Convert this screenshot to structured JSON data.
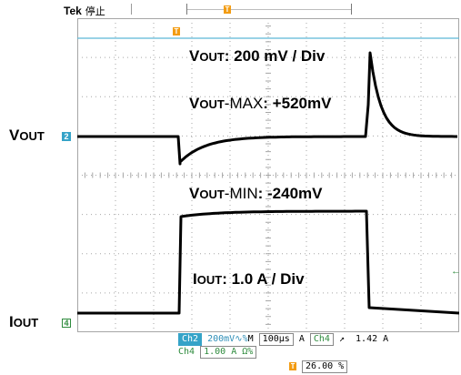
{
  "header": {
    "brand": "Tek",
    "state": "停止",
    "trigger_marker": "T"
  },
  "annotations": {
    "vout_scale": {
      "main": "V",
      "sub": "OUT",
      "rest": ": 200 mV / Div"
    },
    "vout_max": {
      "main": "V",
      "sub": "OUT",
      "mid": "-MAX",
      "rest": ": +520mV"
    },
    "vout_min": {
      "main": "V",
      "sub": "OUT",
      "mid": "-MIN",
      "rest": ": -240mV"
    },
    "iout_scale": {
      "main": "I",
      "sub": "OUT",
      "rest": ": 1.0 A / Div"
    }
  },
  "left_labels": {
    "vout": {
      "main": "V",
      "sub": "OUT"
    },
    "iout": {
      "main": "I",
      "sub": "OUT"
    }
  },
  "channel_markers": {
    "ch2": "2",
    "ch4": "4"
  },
  "status_bar": {
    "ch2_label": "Ch2",
    "ch2_scale": "200mV",
    "ch2_coupling": "∿%",
    "ch4_label": "Ch4",
    "ch4_scale": "1.00 A",
    "ch4_coupling": "Ω%",
    "timebase_prefix": "M",
    "timebase": "100µs",
    "acq_mode": "A",
    "trigger_source": "Ch4",
    "trigger_slope": "↗",
    "trigger_level": "1.42 A",
    "trigger_position": "26.00 %"
  },
  "colors": {
    "grid": "#a6a6a6",
    "trigger_level_line": "#5cb8d6",
    "ch2_tag": "#35a3c8",
    "ch4_tag": "#2e8b3d",
    "trigger_marker": "#f39c12",
    "trace": "#000000"
  }
}
